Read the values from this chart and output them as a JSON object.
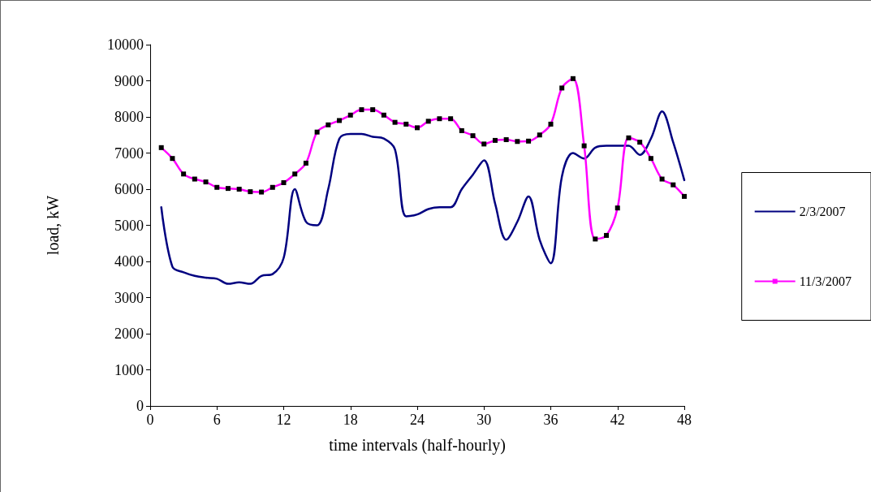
{
  "chart_data": {
    "type": "line",
    "xlabel": "time intervals (half-hourly)",
    "ylabel": "load, kW",
    "x": [
      1,
      2,
      3,
      4,
      5,
      6,
      7,
      8,
      9,
      10,
      11,
      12,
      13,
      14,
      15,
      16,
      17,
      18,
      19,
      20,
      21,
      22,
      23,
      24,
      25,
      26,
      27,
      28,
      29,
      30,
      31,
      32,
      33,
      34,
      35,
      36,
      37,
      38,
      39,
      40,
      41,
      42,
      43,
      44,
      45,
      46,
      47,
      48
    ],
    "series": [
      {
        "name": "2/3/2007",
        "color": "#000080",
        "marker": "none",
        "values": [
          5500,
          3850,
          3700,
          3600,
          3550,
          3520,
          3380,
          3420,
          3380,
          3600,
          3650,
          4100,
          6000,
          5100,
          5000,
          6000,
          7400,
          7530,
          7530,
          7450,
          7400,
          7100,
          5250,
          5300,
          5450,
          5500,
          5500,
          6000,
          6400,
          6800,
          5600,
          4600,
          5100,
          5800,
          4600,
          3950,
          6350,
          7000,
          6850,
          7150,
          7200,
          7200,
          7200,
          6950,
          7400,
          8150,
          7300,
          6250
        ]
      },
      {
        "name": "11/3/2007",
        "color": "#ff00ff",
        "marker": "square",
        "values": [
          7150,
          6850,
          6420,
          6280,
          6200,
          6050,
          6020,
          6000,
          5930,
          5920,
          6050,
          6180,
          6420,
          6720,
          7580,
          7780,
          7900,
          8050,
          8200,
          8200,
          8050,
          7850,
          7800,
          7700,
          7880,
          7950,
          7950,
          7620,
          7480,
          7250,
          7350,
          7370,
          7320,
          7330,
          7500,
          7800,
          8800,
          9060,
          7200,
          4620,
          4720,
          5480,
          7420,
          7300,
          6850,
          6280,
          6120,
          5800
        ]
      }
    ],
    "xlim": [
      0,
      48
    ],
    "xticks": [
      0,
      6,
      12,
      18,
      24,
      30,
      36,
      42,
      48
    ],
    "ylim": [
      0,
      10000
    ],
    "yticks": [
      0,
      1000,
      2000,
      3000,
      4000,
      5000,
      6000,
      7000,
      8000,
      9000,
      10000
    ],
    "grid": false,
    "legend": "right",
    "line_style": "solid"
  }
}
